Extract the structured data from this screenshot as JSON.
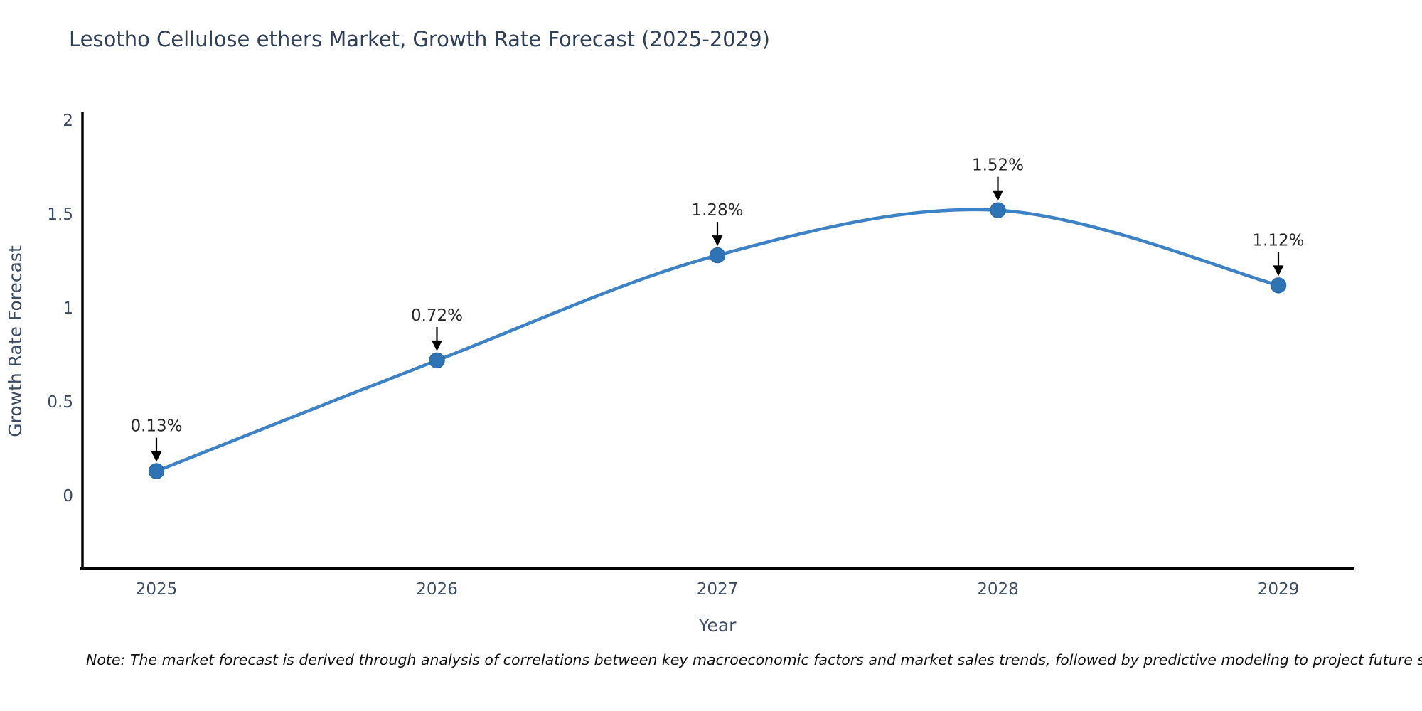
{
  "title": "Lesotho Cellulose ethers Market, Growth Rate Forecast (2025-2029)",
  "note": "Note: The market forecast is derived through analysis of correlations between key macroeconomic factors and market sales trends, followed by predictive modeling to project future sales",
  "chart_data": {
    "type": "line",
    "x": [
      "2025",
      "2026",
      "2027",
      "2028",
      "2029"
    ],
    "series": [
      {
        "name": "Growth Rate Forecast",
        "values": [
          0.13,
          0.72,
          1.28,
          1.52,
          1.12
        ]
      }
    ],
    "point_labels": [
      "0.13%",
      "0.72%",
      "1.28%",
      "1.52%",
      "1.12%"
    ],
    "title": "Lesotho Cellulose ethers Market, Growth Rate Forecast (2025-2029)",
    "xlabel": "Year",
    "ylabel": "Growth Rate Forecast",
    "yticks": [
      0,
      0.5,
      1,
      1.5,
      2
    ],
    "ylim": [
      -0.39,
      2.04
    ],
    "grid": false,
    "legend_position": "none",
    "line_style": "smooth-spline",
    "annotations_have_arrows": true
  },
  "colors": {
    "line": "#3d82c4",
    "marker": "#2e74b5",
    "marker_edge": "#2a6aa8",
    "axis_line": "#000000",
    "arrow": "#000000",
    "title_text": "#2f3f58",
    "axis_text": "#3b4b61",
    "annotation_text": "#262626",
    "note_text": "#111111",
    "background": "#ffffff"
  }
}
